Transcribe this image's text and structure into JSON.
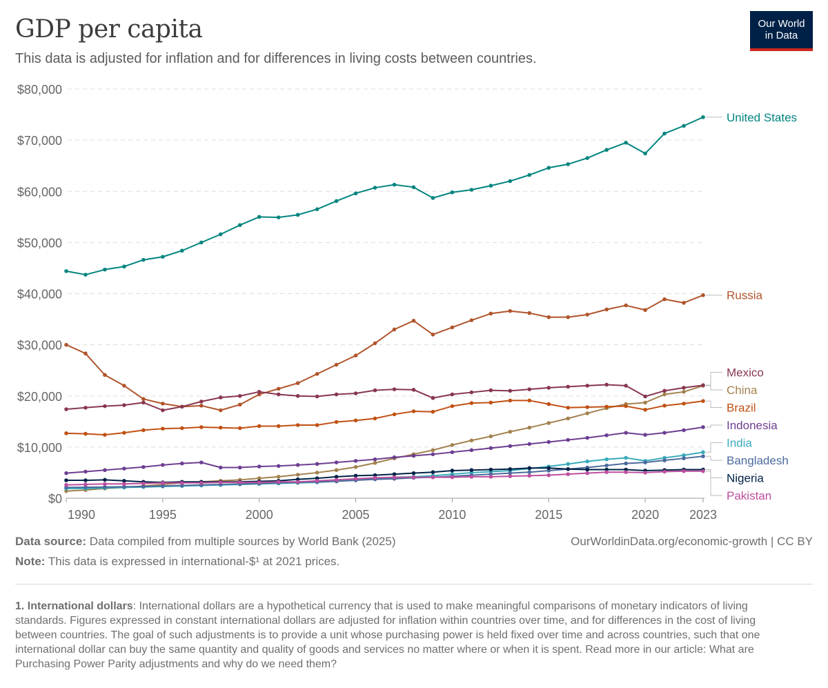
{
  "header": {
    "title": "GDP per capita",
    "subtitle": "This data is adjusted for inflation and for differences in living costs between countries.",
    "logo_line1": "Our World",
    "logo_line2": "in Data"
  },
  "footer": {
    "source_label": "Data source:",
    "source_text": "Data compiled from multiple sources by World Bank (2025)",
    "note_label": "Note:",
    "note_text": "This data is expressed in international-$¹ at 2021 prices.",
    "url_license": "OurWorldinData.org/economic-growth | CC BY",
    "footnote_label": "1. International dollars",
    "footnote_text": ": International dollars are a hypothetical currency that is used to make meaningful comparisons of monetary indicators of living standards. Figures expressed in constant international dollars are adjusted for inflation within countries over time, and for differences in the cost of living between countries. The goal of such adjustments is to provide a unit whose purchasing power is held fixed over time and across countries, such that one international dollar can buy the same quantity and quality of goods and services no matter where or when it is spent. Read more in our article: What are Purchasing Power Parity adjustments and why do we need them?"
  },
  "chart_data": {
    "type": "line",
    "title": "GDP per capita",
    "xlim": [
      1990,
      2023
    ],
    "ylim": [
      0,
      80000
    ],
    "grid": true,
    "legend": "right (line end labels)",
    "x_ticks": [
      1990,
      1995,
      2000,
      2005,
      2010,
      2015,
      2020,
      2023
    ],
    "x_tick_labels": [
      "1990",
      "1995",
      "2000",
      "2005",
      "2010",
      "2015",
      "2020",
      "2023"
    ],
    "y_ticks": [
      0,
      10000,
      20000,
      30000,
      40000,
      50000,
      60000,
      70000,
      80000
    ],
    "y_tick_labels": [
      "$0",
      "$10,000",
      "$20,000",
      "$30,000",
      "$40,000",
      "$50,000",
      "$60,000",
      "$70,000",
      "$80,000"
    ],
    "x": [
      1990,
      1991,
      1992,
      1993,
      1994,
      1995,
      1996,
      1997,
      1998,
      1999,
      2000,
      2001,
      2002,
      2003,
      2004,
      2005,
      2006,
      2007,
      2008,
      2009,
      2010,
      2011,
      2012,
      2013,
      2014,
      2015,
      2016,
      2017,
      2018,
      2019,
      2020,
      2021,
      2022,
      2023
    ],
    "series": [
      {
        "name": "United States",
        "color": "#00847e",
        "values": [
          44400,
          43700,
          44700,
          45300,
          46600,
          47200,
          48400,
          50000,
          51600,
          53400,
          55000,
          54900,
          55400,
          56500,
          58100,
          59600,
          60700,
          61300,
          60800,
          58700,
          59800,
          60300,
          61100,
          62000,
          63200,
          64600,
          65300,
          66500,
          68100,
          69500,
          67400,
          71300,
          72800,
          74500
        ]
      },
      {
        "name": "Russia",
        "color": "#b0542b",
        "values": [
          30000,
          28300,
          24100,
          22000,
          19400,
          18500,
          17900,
          18100,
          17200,
          18300,
          20300,
          21400,
          22500,
          24300,
          26100,
          27900,
          30300,
          33000,
          34700,
          32000,
          33400,
          34800,
          36100,
          36600,
          36200,
          35400,
          35400,
          35900,
          36900,
          37700,
          36800,
          38900,
          38200,
          39700
        ]
      },
      {
        "name": "China",
        "color": "#a2814d",
        "values": [
          1400,
          1600,
          1900,
          2100,
          2400,
          2700,
          3000,
          3200,
          3400,
          3600,
          3900,
          4200,
          4600,
          5000,
          5500,
          6100,
          6900,
          7800,
          8600,
          9400,
          10400,
          11300,
          12100,
          13000,
          13800,
          14700,
          15600,
          16600,
          17600,
          18400,
          18700,
          20300,
          20800,
          22000
        ]
      },
      {
        "name": "Mexico",
        "color": "#88364e",
        "values": [
          17400,
          17700,
          18000,
          18200,
          18700,
          17200,
          17900,
          18900,
          19700,
          20000,
          20800,
          20300,
          20000,
          19900,
          20300,
          20500,
          21100,
          21300,
          21200,
          19600,
          20300,
          20700,
          21100,
          21000,
          21300,
          21600,
          21800,
          22000,
          22200,
          22000,
          19900,
          21000,
          21600,
          22100
        ]
      },
      {
        "name": "Brazil",
        "color": "#c15013",
        "values": [
          12700,
          12600,
          12400,
          12800,
          13300,
          13600,
          13700,
          13900,
          13800,
          13700,
          14100,
          14100,
          14300,
          14300,
          14900,
          15200,
          15600,
          16400,
          17000,
          16900,
          18000,
          18600,
          18700,
          19100,
          19100,
          18400,
          17700,
          17800,
          17900,
          18000,
          17300,
          18100,
          18500,
          19000
        ]
      },
      {
        "name": "Indonesia",
        "color": "#6d3e91",
        "values": [
          4900,
          5200,
          5500,
          5800,
          6100,
          6500,
          6800,
          7000,
          6000,
          6000,
          6200,
          6300,
          6500,
          6700,
          7000,
          7300,
          7600,
          8000,
          8300,
          8600,
          9000,
          9400,
          9800,
          10200,
          10600,
          11000,
          11400,
          11800,
          12300,
          12800,
          12400,
          12800,
          13300,
          13900
        ]
      },
      {
        "name": "India",
        "color": "#38aaba",
        "values": [
          1900,
          1900,
          2000,
          2100,
          2200,
          2300,
          2400,
          2500,
          2600,
          2700,
          2800,
          2900,
          3000,
          3100,
          3300,
          3600,
          3800,
          4100,
          4200,
          4400,
          4700,
          5000,
          5200,
          5400,
          5800,
          6200,
          6700,
          7200,
          7600,
          7900,
          7300,
          7900,
          8400,
          9000
        ]
      },
      {
        "name": "Bangladesh",
        "color": "#4c6a9c",
        "values": [
          2100,
          2150,
          2200,
          2250,
          2300,
          2400,
          2500,
          2600,
          2700,
          2800,
          2900,
          3000,
          3100,
          3200,
          3300,
          3500,
          3700,
          3800,
          4000,
          4100,
          4300,
          4500,
          4700,
          4900,
          5100,
          5400,
          5700,
          6000,
          6400,
          6800,
          7000,
          7400,
          7800,
          8200
        ]
      },
      {
        "name": "Nigeria",
        "color": "#002147",
        "values": [
          3500,
          3500,
          3600,
          3400,
          3200,
          3100,
          3200,
          3200,
          3200,
          3200,
          3300,
          3400,
          3700,
          3900,
          4200,
          4400,
          4500,
          4700,
          4900,
          5100,
          5400,
          5500,
          5600,
          5700,
          5900,
          5900,
          5700,
          5600,
          5600,
          5600,
          5400,
          5500,
          5600,
          5600
        ]
      },
      {
        "name": "Pakistan",
        "color": "#bc4f9e",
        "values": [
          2600,
          2700,
          2800,
          2800,
          2900,
          3000,
          3000,
          3000,
          3100,
          3100,
          3100,
          3200,
          3200,
          3400,
          3600,
          3800,
          4000,
          4100,
          4100,
          4100,
          4100,
          4200,
          4200,
          4300,
          4400,
          4500,
          4700,
          4900,
          5100,
          5100,
          5000,
          5200,
          5300,
          5300
        ]
      }
    ]
  }
}
